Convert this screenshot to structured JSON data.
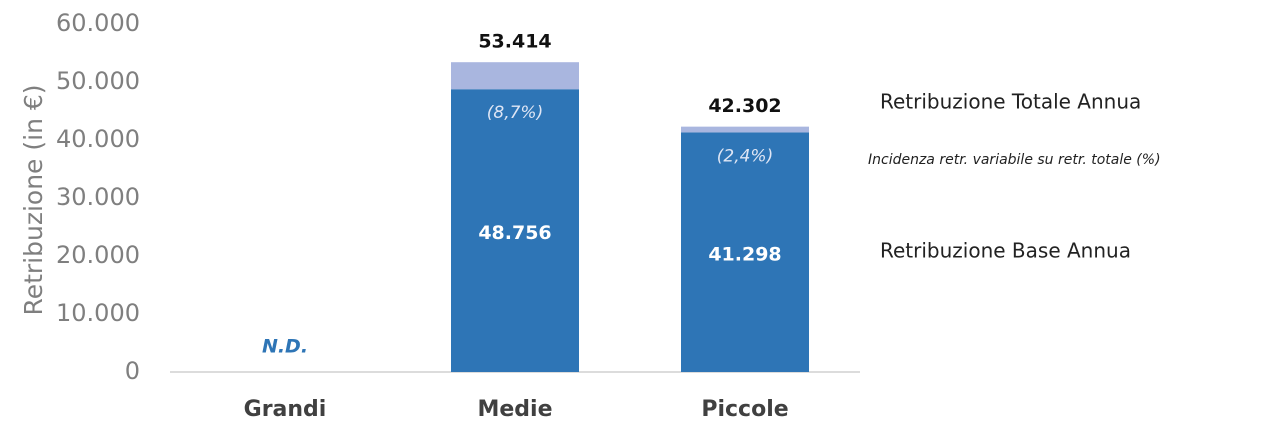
{
  "chart_data": {
    "type": "stacked_bar",
    "y_label": "Retribuzione (in €)",
    "categories": [
      "Grandi",
      "Medie",
      "Piccole"
    ],
    "series": [
      {
        "name": "Retribuzione Base Annua",
        "color": "#2e75b6",
        "values": [
          null,
          48756,
          41298
        ],
        "value_labels": [
          null,
          "48.756",
          "41.298"
        ]
      },
      {
        "color": "#a9b6df",
        "values": [
          null,
          4658,
          1004
        ]
      }
    ],
    "totals": {
      "name": "Retribuzione Totale Annua",
      "values": [
        null,
        53414,
        42302
      ],
      "value_labels": [
        null,
        "53.414",
        "42.302"
      ]
    },
    "incidence": {
      "name": "Incidenza retr. variabile su retr. totale (%)",
      "values": [
        null,
        8.7,
        2.4
      ],
      "value_labels": [
        null,
        "(8,7%)",
        "(2,4%)"
      ]
    },
    "annotations": [
      {
        "category": 0,
        "text": "N.D.",
        "color": "#2e75b6"
      }
    ],
    "ylim": [
      0,
      60000
    ],
    "yticks": [
      0,
      {
        "value": 10000,
        "label": "10.000"
      },
      {
        "value": 20000,
        "label": "20.000"
      },
      {
        "value": 30000,
        "label": "30.000"
      },
      {
        "value": 40000,
        "label": "40.000"
      },
      {
        "value": 50000,
        "label": "50.000"
      },
      {
        "value": 60000,
        "label": "60.000"
      }
    ],
    "grid": false
  }
}
